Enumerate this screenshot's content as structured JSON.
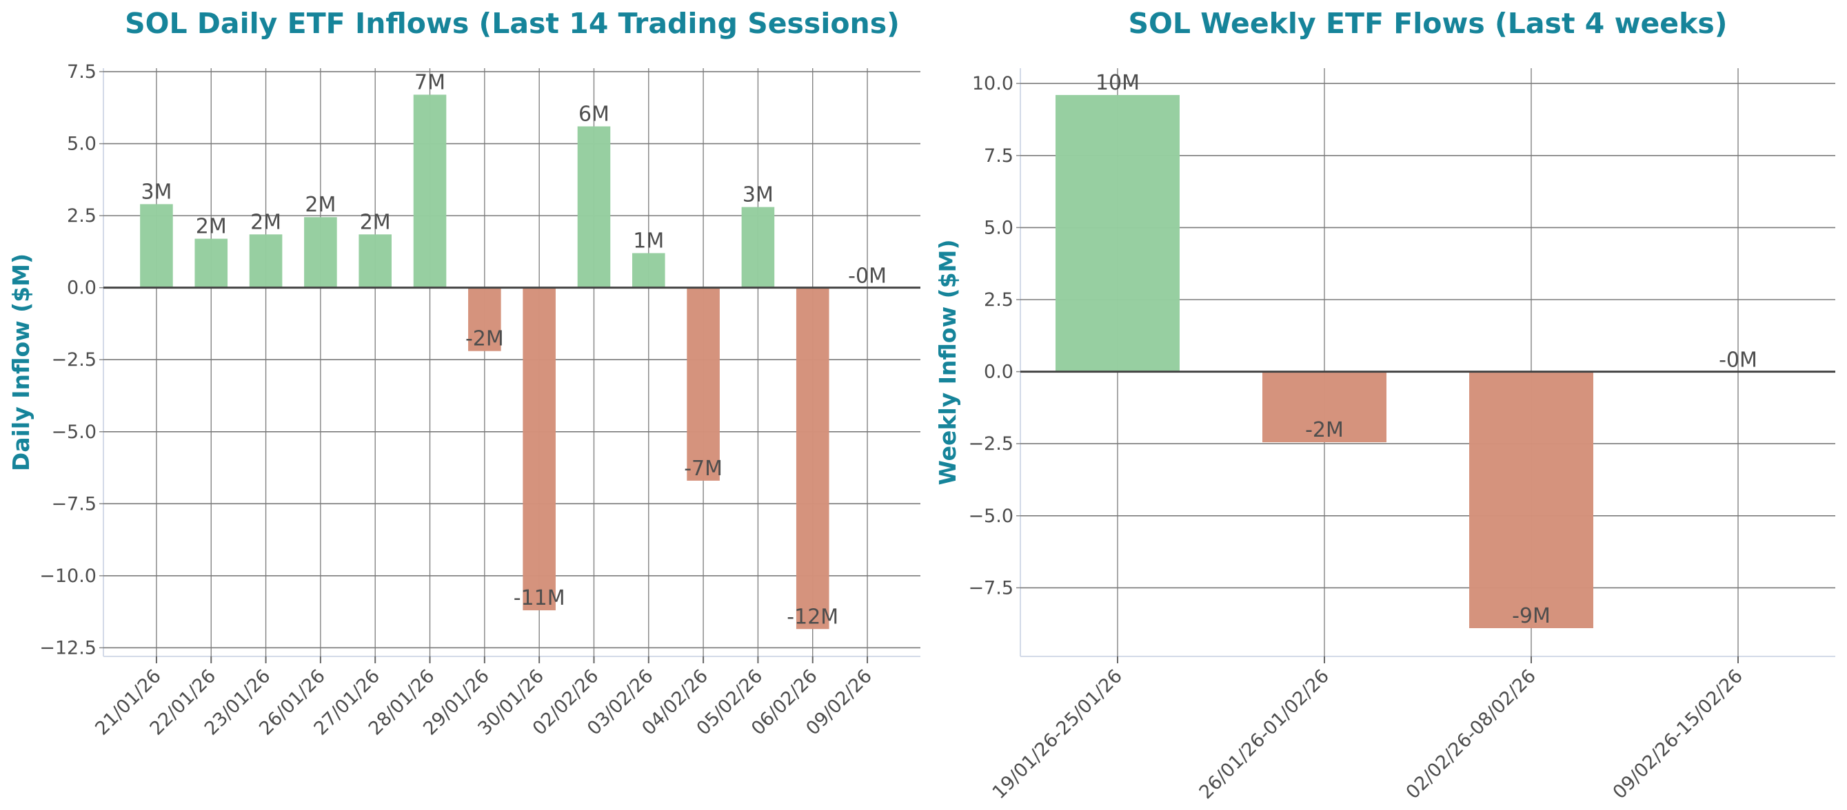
{
  "colors": {
    "positive": "#95ce9f",
    "negative": "#d4917a",
    "title": "#16849a",
    "text": "#4d4d4d",
    "grid": "#7a7a7a",
    "zero_line": "#444444"
  },
  "chart_data": [
    {
      "type": "bar",
      "title": "SOL Daily ETF Inflows (Last 14 Trading Sessions)",
      "xlabel": "",
      "ylabel": "Daily Inflow ($M)",
      "categories": [
        "21/01/26",
        "22/01/26",
        "23/01/26",
        "26/01/26",
        "27/01/26",
        "28/01/26",
        "29/01/26",
        "30/01/26",
        "02/02/26",
        "03/02/26",
        "04/02/26",
        "05/02/26",
        "06/02/26",
        "09/02/26"
      ],
      "values": [
        2.9,
        1.7,
        1.85,
        2.45,
        1.85,
        6.7,
        -2.2,
        -11.2,
        5.6,
        1.2,
        -6.7,
        2.8,
        -11.85,
        -0.02
      ],
      "data_labels": [
        "3M",
        "2M",
        "2M",
        "2M",
        "2M",
        "7M",
        "-2M",
        "-11M",
        "6M",
        "1M",
        "-7M",
        "3M",
        "-12M",
        "-0M"
      ],
      "ylim": [
        -12.8,
        7.62
      ],
      "yticks": [
        -12.5,
        -10.0,
        -7.5,
        -5.0,
        -2.5,
        0.0,
        2.5,
        5.0,
        7.5
      ],
      "ytick_labels": [
        "−12.5",
        "−10.0",
        "−7.5",
        "−5.0",
        "−2.5",
        "0.0",
        "2.5",
        "5.0",
        "7.5"
      ],
      "grid": true
    },
    {
      "type": "bar",
      "title": "SOL Weekly ETF Flows (Last 4 weeks)",
      "xlabel": "",
      "ylabel": "Weekly Inflow ($M)",
      "categories": [
        "19/01/26-25/01/26",
        "26/01/26-01/02/26",
        "02/02/26-08/02/26",
        "09/02/26-15/02/26"
      ],
      "values": [
        9.6,
        -2.45,
        -8.9,
        -0.02
      ],
      "data_labels": [
        "10M",
        "-2M",
        "-9M",
        "-0M"
      ],
      "ylim": [
        -9.88,
        10.53
      ],
      "yticks": [
        -7.5,
        -5.0,
        -2.5,
        0.0,
        2.5,
        5.0,
        7.5,
        10.0
      ],
      "ytick_labels": [
        "−7.5",
        "−5.0",
        "−2.5",
        "0.0",
        "2.5",
        "5.0",
        "7.5",
        "10.0"
      ],
      "grid": true
    }
  ]
}
